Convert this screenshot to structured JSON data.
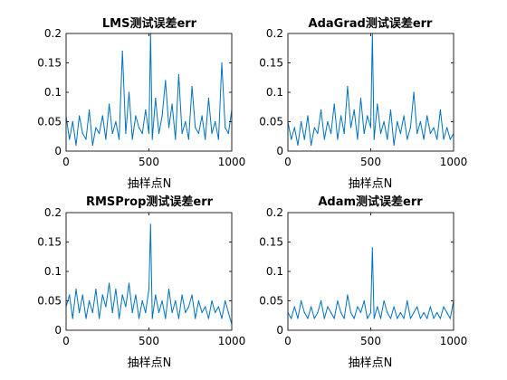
{
  "chart_data": [
    {
      "type": "line",
      "title": "LMS测试误差err",
      "xlabel": "抽样点N",
      "ylabel": "",
      "xlim": [
        0,
        1000
      ],
      "ylim": [
        0,
        0.2
      ],
      "xticks": [
        "0",
        "500",
        "1000"
      ],
      "yticks": [
        "0",
        "0.05",
        "0.1",
        "0.15",
        "0.2"
      ],
      "grid": false,
      "color": "#0072BD",
      "x": [
        0,
        20,
        40,
        60,
        80,
        100,
        120,
        140,
        160,
        180,
        200,
        220,
        240,
        260,
        280,
        300,
        320,
        340,
        360,
        380,
        400,
        420,
        440,
        460,
        480,
        500,
        510,
        520,
        540,
        560,
        580,
        600,
        620,
        640,
        660,
        680,
        700,
        720,
        740,
        760,
        780,
        800,
        820,
        840,
        860,
        880,
        900,
        920,
        940,
        960,
        980,
        1000
      ],
      "y": [
        0.06,
        0.02,
        0.05,
        0.01,
        0.06,
        0.03,
        0.02,
        0.07,
        0.01,
        0.04,
        0.03,
        0.06,
        0.02,
        0.08,
        0.03,
        0.05,
        0.02,
        0.17,
        0.03,
        0.1,
        0.02,
        0.06,
        0.04,
        0.03,
        0.07,
        0.03,
        0.2,
        0.02,
        0.09,
        0.03,
        0.06,
        0.12,
        0.04,
        0.08,
        0.02,
        0.13,
        0.03,
        0.05,
        0.02,
        0.11,
        0.04,
        0.03,
        0.06,
        0.02,
        0.09,
        0.03,
        0.05,
        0.02,
        0.15,
        0.04,
        0.03,
        0.07
      ]
    },
    {
      "type": "line",
      "title": "AdaGrad测试误差err",
      "xlabel": "抽样点N",
      "ylabel": "",
      "xlim": [
        0,
        1000
      ],
      "ylim": [
        0,
        0.2
      ],
      "xticks": [
        "0",
        "500",
        "1000"
      ],
      "yticks": [
        "0",
        "0.05",
        "0.1",
        "0.15",
        "0.2"
      ],
      "grid": false,
      "color": "#0072BD",
      "x": [
        0,
        20,
        40,
        60,
        80,
        100,
        120,
        140,
        160,
        180,
        200,
        220,
        240,
        260,
        280,
        300,
        320,
        340,
        360,
        380,
        400,
        420,
        440,
        460,
        480,
        500,
        510,
        520,
        540,
        560,
        580,
        600,
        620,
        640,
        660,
        680,
        700,
        720,
        740,
        760,
        780,
        800,
        820,
        840,
        860,
        880,
        900,
        920,
        940,
        960,
        980,
        1000
      ],
      "y": [
        0.05,
        0.02,
        0.04,
        0.01,
        0.05,
        0.02,
        0.06,
        0.01,
        0.04,
        0.03,
        0.07,
        0.02,
        0.05,
        0.03,
        0.08,
        0.02,
        0.06,
        0.03,
        0.11,
        0.04,
        0.07,
        0.02,
        0.09,
        0.03,
        0.06,
        0.04,
        0.2,
        0.02,
        0.08,
        0.03,
        0.05,
        0.02,
        0.07,
        0.01,
        0.05,
        0.03,
        0.06,
        0.02,
        0.04,
        0.1,
        0.03,
        0.05,
        0.02,
        0.06,
        0.03,
        0.04,
        0.02,
        0.07,
        0.02,
        0.04,
        0.02,
        0.03
      ]
    },
    {
      "type": "line",
      "title": "RMSProp测试误差err",
      "xlabel": "抽样点N",
      "ylabel": "",
      "xlim": [
        0,
        1000
      ],
      "ylim": [
        0,
        0.2
      ],
      "xticks": [
        "0",
        "500",
        "1000"
      ],
      "yticks": [
        "0",
        "0.05",
        "0.1",
        "0.15",
        "0.2"
      ],
      "grid": false,
      "color": "#0072BD",
      "x": [
        0,
        20,
        40,
        60,
        80,
        100,
        120,
        140,
        160,
        180,
        200,
        220,
        240,
        260,
        280,
        300,
        320,
        340,
        360,
        380,
        400,
        420,
        440,
        460,
        480,
        500,
        510,
        520,
        540,
        560,
        580,
        600,
        620,
        640,
        660,
        680,
        700,
        720,
        740,
        760,
        780,
        800,
        820,
        840,
        860,
        880,
        900,
        920,
        940,
        960,
        980,
        1000
      ],
      "y": [
        0.04,
        0.06,
        0.02,
        0.07,
        0.03,
        0.06,
        0.02,
        0.05,
        0.03,
        0.07,
        0.02,
        0.06,
        0.04,
        0.08,
        0.03,
        0.07,
        0.02,
        0.06,
        0.04,
        0.08,
        0.03,
        0.06,
        0.02,
        0.05,
        0.03,
        0.07,
        0.18,
        0.02,
        0.06,
        0.03,
        0.05,
        0.02,
        0.07,
        0.03,
        0.05,
        0.02,
        0.06,
        0.03,
        0.04,
        0.06,
        0.02,
        0.05,
        0.03,
        0.04,
        0.02,
        0.05,
        0.03,
        0.04,
        0.02,
        0.05,
        0.03,
        0.01
      ]
    },
    {
      "type": "line",
      "title": "Adam测试误差err",
      "xlabel": "抽样点N",
      "ylabel": "",
      "xlim": [
        0,
        1000
      ],
      "ylim": [
        0,
        0.2
      ],
      "xticks": [
        "0",
        "500",
        "1000"
      ],
      "yticks": [
        "0",
        "0.05",
        "0.1",
        "0.15",
        "0.2"
      ],
      "grid": false,
      "color": "#0072BD",
      "x": [
        0,
        20,
        40,
        60,
        80,
        100,
        120,
        140,
        160,
        180,
        200,
        220,
        240,
        260,
        280,
        300,
        320,
        340,
        360,
        380,
        400,
        420,
        440,
        460,
        480,
        500,
        510,
        520,
        540,
        560,
        580,
        600,
        620,
        640,
        660,
        680,
        700,
        720,
        740,
        760,
        780,
        800,
        820,
        840,
        860,
        880,
        900,
        920,
        940,
        960,
        980,
        1000
      ],
      "y": [
        0.03,
        0.02,
        0.04,
        0.02,
        0.05,
        0.03,
        0.02,
        0.04,
        0.02,
        0.03,
        0.05,
        0.02,
        0.04,
        0.03,
        0.02,
        0.05,
        0.03,
        0.02,
        0.06,
        0.03,
        0.02,
        0.04,
        0.03,
        0.05,
        0.02,
        0.03,
        0.14,
        0.02,
        0.04,
        0.02,
        0.05,
        0.03,
        0.02,
        0.04,
        0.02,
        0.03,
        0.02,
        0.05,
        0.02,
        0.03,
        0.04,
        0.02,
        0.03,
        0.02,
        0.04,
        0.02,
        0.03,
        0.02,
        0.04,
        0.03,
        0.02,
        0.05
      ]
    }
  ]
}
